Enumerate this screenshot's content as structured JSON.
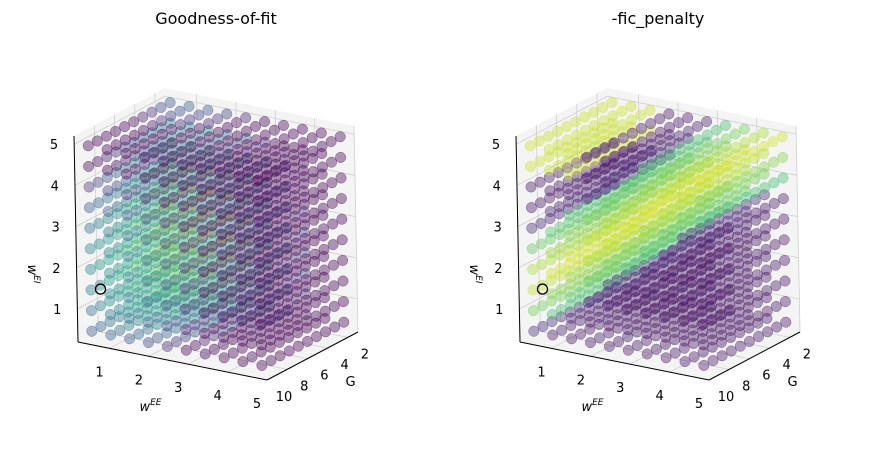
{
  "chart_data": [
    {
      "type": "scatter3d",
      "title": "Goodness-of-fit",
      "xlabel": "w^{EE}",
      "ylabel": "G",
      "zlabel": "w^{EI}",
      "x_ticks": [
        "1",
        "2",
        "3",
        "4",
        "5"
      ],
      "y_ticks": [
        "2",
        "4",
        "6",
        "8",
        "10"
      ],
      "z_ticks": [
        "1",
        "2",
        "3",
        "4",
        "5"
      ],
      "xlim": [
        0.2,
        5.0
      ],
      "ylim": [
        1.0,
        10.0
      ],
      "zlim": [
        0.2,
        5.2
      ],
      "grid_points": 10,
      "colormap": "viridis",
      "marker_alpha": 0.4,
      "highlighted_point": {
        "wEE": 0.8,
        "G": 10,
        "wEI": 1.6
      },
      "notes": ""
    },
    {
      "type": "scatter3d",
      "title": "-fic_penalty",
      "xlabel": "w^{EE}",
      "ylabel": "G",
      "zlabel": "w^{EI}",
      "x_ticks": [
        "1",
        "2",
        "3",
        "4",
        "5"
      ],
      "y_ticks": [
        "2",
        "4",
        "6",
        "8",
        "10"
      ],
      "z_ticks": [
        "1",
        "2",
        "3",
        "4",
        "5"
      ],
      "xlim": [
        0.2,
        5.0
      ],
      "ylim": [
        1.0,
        10.0
      ],
      "zlim": [
        0.2,
        5.2
      ],
      "grid_points": 10,
      "colormap": "viridis",
      "marker_alpha": 0.4,
      "highlighted_point": {
        "wEE": 0.8,
        "G": 10,
        "wEI": 1.6
      }
    }
  ]
}
